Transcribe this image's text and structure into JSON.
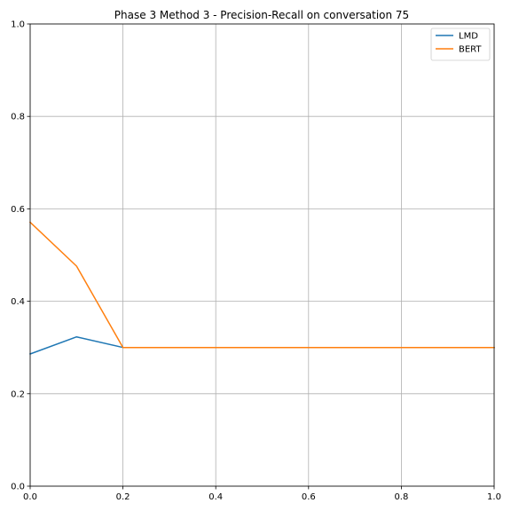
{
  "chart_data": {
    "type": "line",
    "title": "Phase 3 Method 3 - Precision-Recall on conversation 75",
    "xlabel": "",
    "ylabel": "",
    "xlim": [
      0,
      1
    ],
    "ylim": [
      0,
      1
    ],
    "grid": true,
    "legend_position": "top-right",
    "x_ticks": [
      0.0,
      0.2,
      0.4,
      0.6,
      0.8,
      1.0
    ],
    "x_tick_labels": [
      "0.0",
      "0.2",
      "0.4",
      "0.6",
      "0.8",
      "1.0"
    ],
    "y_ticks": [
      0.0,
      0.2,
      0.4,
      0.6,
      0.8,
      1.0
    ],
    "y_tick_labels": [
      "0.0",
      "0.2",
      "0.4",
      "0.6",
      "0.8",
      "1.0"
    ],
    "x": [
      0.0,
      0.1,
      0.2,
      0.3,
      0.4,
      0.5,
      0.6,
      0.7,
      0.8,
      0.9,
      1.0
    ],
    "series": [
      {
        "name": "LMD",
        "color": "#1f77b4",
        "values": [
          0.286,
          0.323,
          0.3,
          0.3,
          0.3,
          0.3,
          0.3,
          0.3,
          0.3,
          0.3,
          0.3
        ]
      },
      {
        "name": "BERT",
        "color": "#ff7f0e",
        "values": [
          0.571,
          0.476,
          0.3,
          0.3,
          0.3,
          0.3,
          0.3,
          0.3,
          0.3,
          0.3,
          0.3
        ]
      }
    ]
  }
}
